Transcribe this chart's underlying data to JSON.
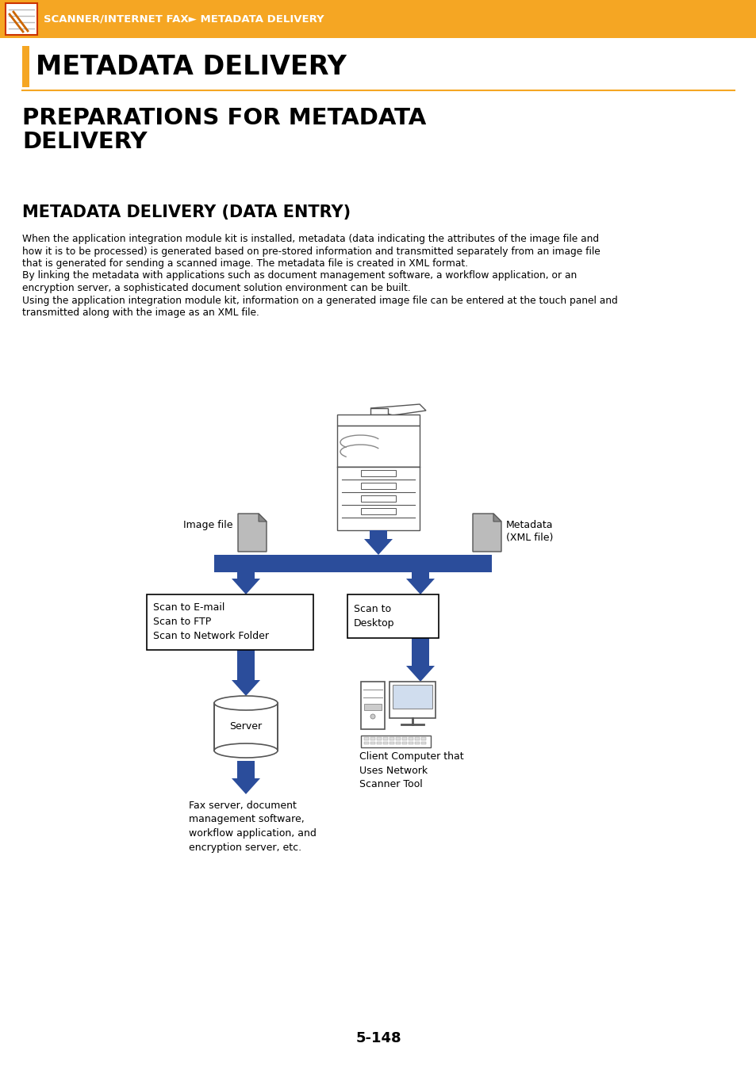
{
  "header_bg": "#F5A623",
  "header_text": "SCANNER/INTERNET FAX► METADATA DELIVERY",
  "header_text_color": "#FFFFFF",
  "page_bg": "#FFFFFF",
  "title1": "METADATA DELIVERY",
  "title1_bar_color": "#F5A623",
  "title2": "PREPARATIONS FOR METADATA\nDELIVERY",
  "title3": "METADATA DELIVERY (DATA ENTRY)",
  "body_line1": "When the application integration module kit is installed, metadata (data indicating the attributes of the image file and",
  "body_line2": "how it is to be processed) is generated based on pre-stored information and transmitted separately from an image file",
  "body_line3": "that is generated for sending a scanned image. The metadata file is created in XML format.",
  "body_line4": "By linking the metadata with applications such as document management software, a workflow application, or an",
  "body_line5": "encryption server, a sophisticated document solution environment can be built.",
  "body_line6": "Using the application integration module kit, information on a generated image file can be entered at the touch panel and",
  "body_line7": "transmitted along with the image as an XML file.",
  "arrow_color": "#2B4D9B",
  "box_border_color": "#000000",
  "box_text_scan_left": "Scan to E-mail\nScan to FTP\nScan to Network Folder",
  "box_text_scan_right": "Scan to\nDesktop",
  "label_image_file": "Image file",
  "label_metadata": "Metadata\n(XML file)",
  "label_server": "Server",
  "label_client": "Client Computer that\nUses Network\nScanner Tool",
  "label_fax": "Fax server, document\nmanagement software,\nworkflow application, and\nencryption server, etc.",
  "page_number": "5-148",
  "text_color": "#000000",
  "gray_dark": "#888888",
  "gray_mid": "#AAAAAA",
  "gray_light": "#DDDDDD"
}
